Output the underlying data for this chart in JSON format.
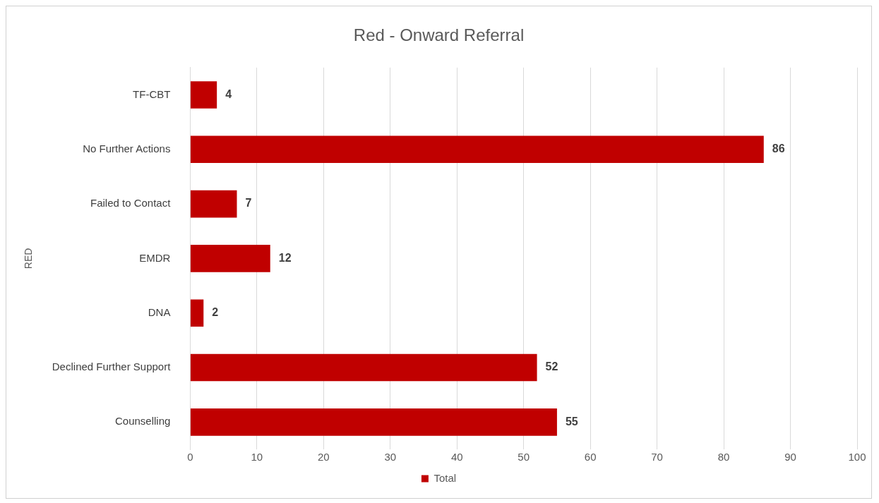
{
  "chart_data": {
    "type": "bar",
    "orientation": "horizontal",
    "title": "Red - Onward Referral",
    "ylabel": "RED",
    "categories": [
      "TF-CBT",
      "No Further Actions",
      "Failed to Contact",
      "EMDR",
      "DNA",
      "Declined Further Support",
      "Counselling"
    ],
    "series": [
      {
        "name": "Total",
        "color": "#c00000",
        "values": [
          4,
          86,
          7,
          12,
          2,
          52,
          55
        ]
      }
    ],
    "xlim": [
      0,
      100
    ],
    "xticks": [
      0,
      10,
      20,
      30,
      40,
      50,
      60,
      70,
      80,
      90,
      100
    ],
    "grid": "x",
    "legend": "bottom",
    "data_labels": true
  }
}
